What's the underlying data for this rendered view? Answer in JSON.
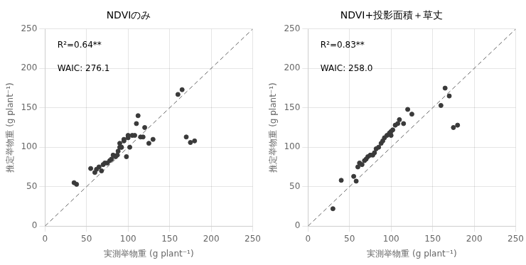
{
  "chart_data": [
    {
      "type": "scatter",
      "title": "NDVIのみ",
      "annotations": [
        "R²=0.64**",
        "WAIC: 276.1"
      ],
      "xlabel": "実測举物重 (g plant⁻¹)",
      "ylabel": "推定举物重 (g plant⁻¹)",
      "x": [
        35,
        38,
        55,
        60,
        62,
        65,
        68,
        70,
        72,
        75,
        78,
        80,
        82,
        85,
        87,
        88,
        90,
        90,
        92,
        92,
        95,
        95,
        98,
        100,
        100,
        102,
        105,
        108,
        110,
        112,
        115,
        118,
        120,
        125,
        130,
        160,
        165,
        170,
        175,
        180
      ],
      "values": [
        55,
        53,
        73,
        68,
        72,
        75,
        70,
        78,
        80,
        80,
        83,
        85,
        90,
        88,
        90,
        95,
        100,
        105,
        100,
        100,
        108,
        110,
        88,
        112,
        115,
        100,
        115,
        115,
        130,
        140,
        113,
        113,
        125,
        105,
        110,
        167,
        173,
        113,
        106,
        108
      ],
      "color": "#3a3a3a",
      "xlim": [
        0,
        250
      ],
      "ylim": [
        0,
        250
      ],
      "xticks": [
        0,
        50,
        100,
        150,
        200,
        250
      ],
      "yticks": [
        0,
        50,
        100,
        150,
        200,
        250
      ],
      "grid": true
    },
    {
      "type": "scatter",
      "title": "NDVI+投影面積＋草丈",
      "annotations": [
        "R²=0.83**",
        "WAIC: 258.0"
      ],
      "xlabel": "実測举物重 (g plant⁻¹)",
      "ylabel": "推定举物重 (g plant⁻¹)",
      "x": [
        30,
        40,
        55,
        58,
        60,
        62,
        65,
        68,
        70,
        72,
        75,
        78,
        80,
        82,
        85,
        88,
        90,
        92,
        95,
        98,
        100,
        100,
        102,
        105,
        108,
        110,
        115,
        120,
        125,
        160,
        165,
        170,
        175,
        180
      ],
      "values": [
        22,
        58,
        63,
        57,
        75,
        80,
        78,
        83,
        85,
        88,
        90,
        90,
        93,
        98,
        100,
        105,
        108,
        112,
        115,
        118,
        115,
        120,
        122,
        128,
        130,
        135,
        130,
        148,
        142,
        153,
        175,
        165,
        125,
        128
      ],
      "color": "#3a3a3a",
      "xlim": [
        0,
        250
      ],
      "ylim": [
        0,
        250
      ],
      "xticks": [
        0,
        50,
        100,
        150,
        200,
        250
      ],
      "yticks": [
        0,
        50,
        100,
        150,
        200,
        250
      ],
      "grid": true
    }
  ]
}
